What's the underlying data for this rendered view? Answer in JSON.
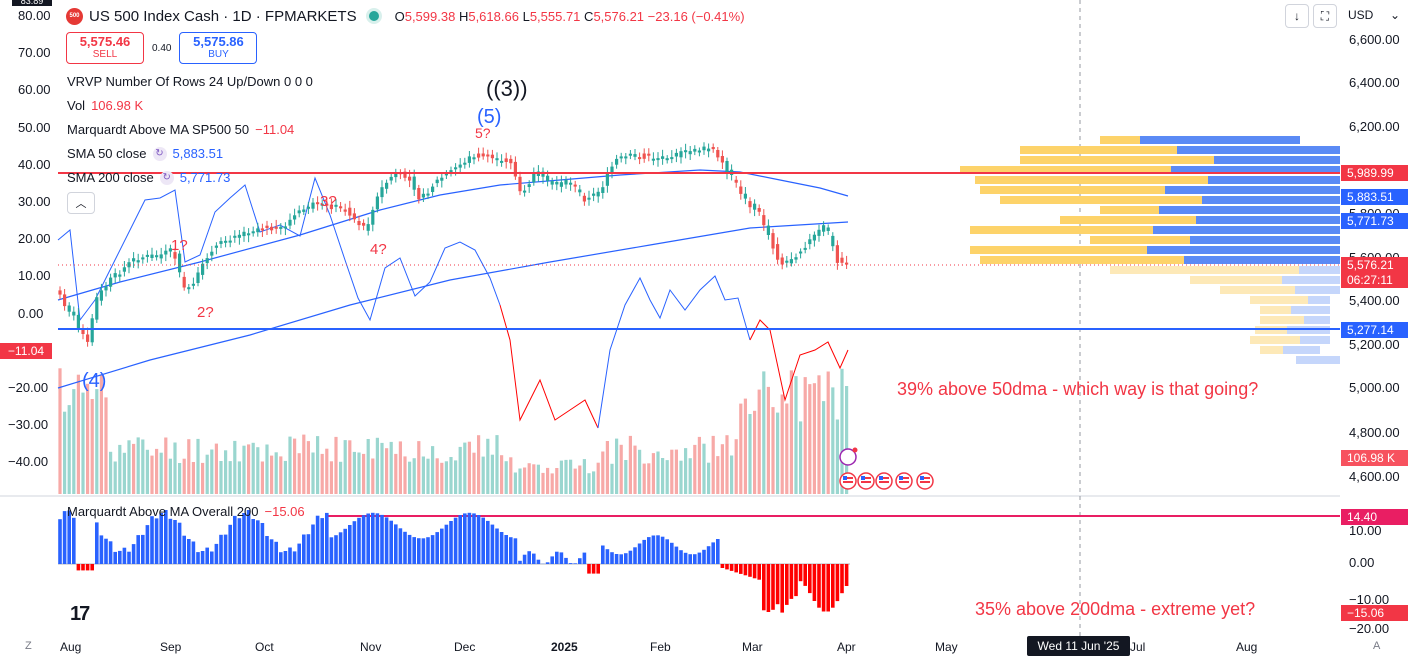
{
  "header": {
    "symbol_badge": "500",
    "title": "US 500 Index Cash · 1D · FPMARKETS",
    "ohlc": {
      "o_label": "O",
      "o": "5,599.38",
      "h_label": "H",
      "h": "5,618.66",
      "l_label": "L",
      "l": "5,555.71",
      "c_label": "C",
      "c": "5,576.21",
      "change": "−23.16 (−0.41%)"
    }
  },
  "trade": {
    "sell_price": "5,575.46",
    "sell_label": "SELL",
    "spread": "0.40",
    "buy_price": "5,575.86",
    "buy_label": "BUY"
  },
  "indicators": {
    "vrvp": "VRVP Number Of Rows 24 Up/Down  0  0  0",
    "vol_label": "Vol",
    "vol_value": "106.98 K",
    "marq_label": "Marquardt Above MA SP500 50",
    "marq_value": "−11.04",
    "sma50_label": "SMA 50 close",
    "sma50_value": "5,883.51",
    "sma200_label": "SMA 200 close",
    "sma200_value": "5,771.73",
    "collapse_icon": "chevron-up",
    "sub_label": "Marquardt Above MA Overall 200",
    "sub_value": "−15.06"
  },
  "toolbar": {
    "currency": "USD",
    "currency_icon": "chevron-down"
  },
  "left_axis": {
    "labels": [
      "80.00",
      "70.00",
      "60.00",
      "50.00",
      "40.00",
      "30.00",
      "20.00",
      "10.00",
      "0.00",
      "−10.00",
      "−20.00",
      "−30.00",
      "−40.00"
    ],
    "top_tag": "83.89",
    "current_tag": "−11.04"
  },
  "right_axis": {
    "labels": [
      "6,600.00",
      "6,400.00",
      "6,200.00",
      "5,400.00",
      "5,200.00",
      "5,000.00",
      "4,800.00",
      "4,600.00"
    ],
    "partial_labels": [
      "5,800.00",
      "5,600.00"
    ],
    "tags": [
      {
        "text": "5,989.99",
        "color": "#f23645"
      },
      {
        "text": "5,883.51",
        "color": "#2962ff"
      },
      {
        "text": "5,771.73",
        "color": "#2962ff"
      },
      {
        "text": "5,576.21",
        "color": "#f23645"
      },
      {
        "text": "06:27:11",
        "color": "#f23645"
      },
      {
        "text": "5,277.14",
        "color": "#2962ff"
      },
      {
        "text": "106.98 K",
        "color": "#f7525f"
      }
    ],
    "sub_labels": [
      "10.00",
      "0.00",
      "−10.00",
      "−20.00"
    ],
    "sub_tags": [
      {
        "text": "14.40",
        "color": "#e91e63"
      },
      {
        "text": "−15.06",
        "color": "#f23645"
      }
    ]
  },
  "x_axis": {
    "labels": [
      "Aug",
      "Sep",
      "Oct",
      "Nov",
      "Dec",
      "2025",
      "Feb",
      "Mar",
      "Apr",
      "May",
      "Jun",
      "Jul",
      "Aug"
    ],
    "crosshair_date": "Wed 11 Jun '25"
  },
  "annotations": {
    "wave_3": "((3))",
    "wave_5": "(5)",
    "wave_5q": "5?",
    "wave_4": "(4)",
    "q1": "1?",
    "q2": "2?",
    "q3": "3?",
    "q4": "4?",
    "note_50": "39% above 50dma - which way is that going?",
    "note_200": "35% above 200dma - extreme yet?"
  },
  "bottom": {
    "z_label": "Z",
    "a_label": "A",
    "logo": "17"
  },
  "colors": {
    "up": "#26a69a",
    "down": "#ef5350",
    "sma": "#2962ff",
    "breadth": "#2962ff",
    "negative": "#ff0000",
    "hline_red": "#f23645",
    "hline_blue": "#2962ff",
    "hline_pink": "#e91e63"
  }
}
